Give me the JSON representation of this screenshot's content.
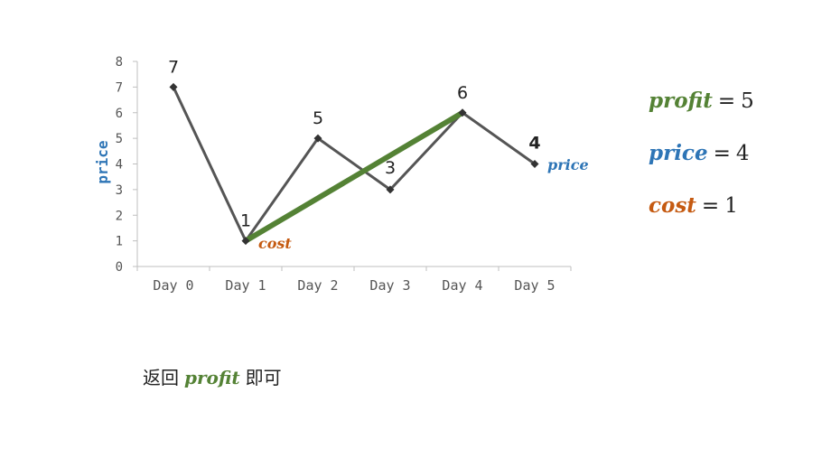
{
  "colors": {
    "line": "#555555",
    "highlight": "#548235",
    "price": "#2e75b6",
    "cost": "#c55a11"
  },
  "chart_data": {
    "type": "line",
    "categories": [
      "Day 0",
      "Day 1",
      "Day 2",
      "Day 3",
      "Day 4",
      "Day 5"
    ],
    "values": [
      7,
      1,
      5,
      3,
      6,
      4
    ],
    "ylabel": "price",
    "ylim": [
      0,
      8
    ],
    "yticks": [
      0,
      1,
      2,
      3,
      4,
      5,
      6,
      7,
      8
    ],
    "grid": false,
    "highlight_segment": {
      "from_index": 1,
      "to_index": 4
    },
    "annotations": [
      {
        "index": 1,
        "text": "cost",
        "color": "cost"
      },
      {
        "index": 5,
        "text": "price",
        "color": "price"
      }
    ]
  },
  "equations": [
    {
      "var": "profit",
      "op": "=",
      "value": "5",
      "color": "highlight"
    },
    {
      "var": "price",
      "op": "=",
      "value": "4",
      "color": "price"
    },
    {
      "var": "cost",
      "op": "=",
      "value": "1",
      "color": "cost"
    }
  ],
  "footer": {
    "prefix": "返回",
    "var": "profit",
    "suffix": "即可"
  }
}
